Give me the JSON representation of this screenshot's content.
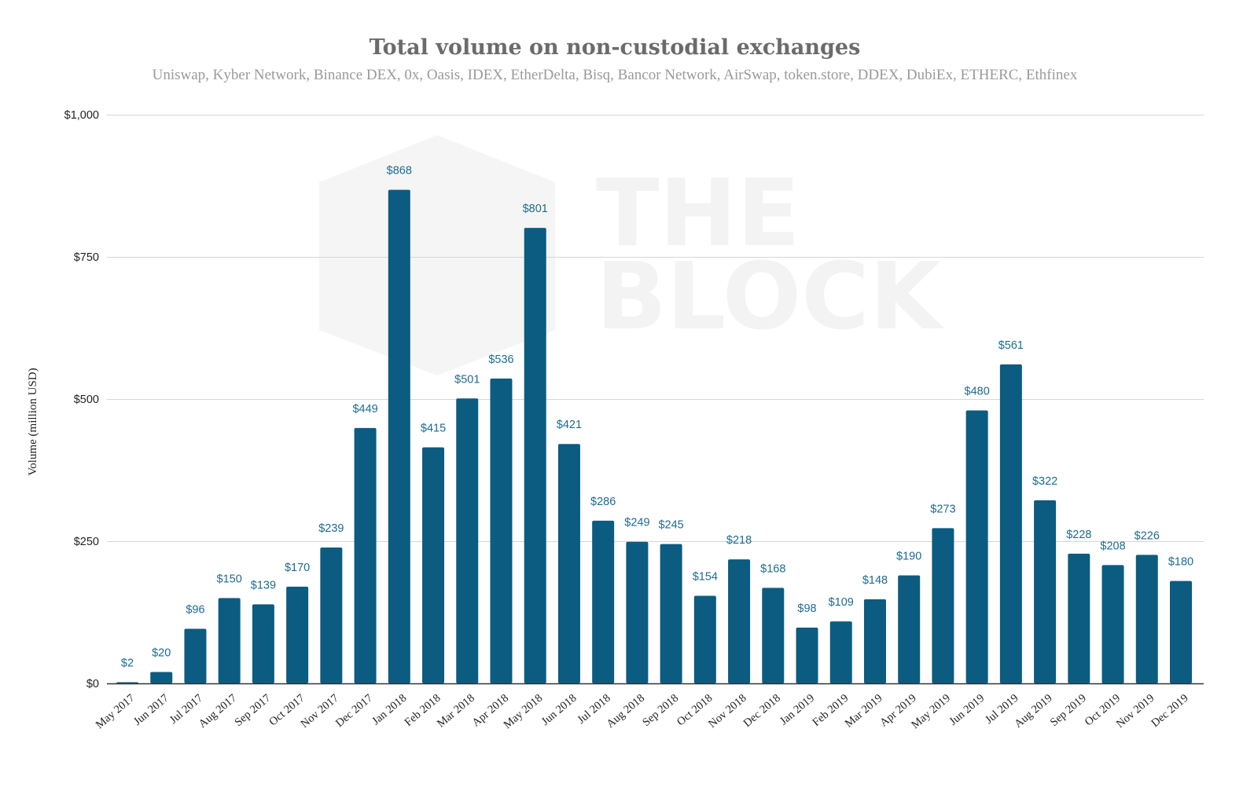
{
  "chart_data": {
    "type": "bar",
    "title": "Total volume on non-custodial exchanges",
    "subtitle": "Uniswap, Kyber Network, Binance DEX, 0x, Oasis, IDEX, EtherDelta, Bisq, Bancor Network, AirSwap, token.store, DDEX, DubiEx, ETHERC, Ethfinex",
    "xlabel": "",
    "ylabel": "Volume (million USD)",
    "ylim": [
      0,
      1000
    ],
    "yticks": [
      0,
      250,
      500,
      750,
      1000
    ],
    "ytick_labels": [
      "$0",
      "$250",
      "$500",
      "$750",
      "$1,000"
    ],
    "grid": true,
    "legend": "none",
    "categories": [
      "May 2017",
      "Jun 2017",
      "Jul 2017",
      "Aug 2017",
      "Sep 2017",
      "Oct 2017",
      "Nov 2017",
      "Dec 2017",
      "Jan 2018",
      "Feb 2018",
      "Mar 2018",
      "Apr 2018",
      "May 2018",
      "Jun 2018",
      "Jul 2018",
      "Aug 2018",
      "Sep 2018",
      "Oct 2018",
      "Nov 2018",
      "Dec 2018",
      "Jan 2019",
      "Feb 2019",
      "Mar 2019",
      "Apr 2019",
      "May 2019",
      "Jun 2019",
      "Jul 2019",
      "Aug 2019",
      "Sep 2019",
      "Oct 2019",
      "Nov 2019",
      "Dec 2019"
    ],
    "values": [
      2,
      20,
      96,
      150,
      139,
      170,
      239,
      449,
      868,
      415,
      501,
      536,
      801,
      421,
      286,
      249,
      245,
      154,
      218,
      168,
      98,
      109,
      148,
      190,
      273,
      480,
      561,
      322,
      228,
      208,
      226,
      180
    ],
    "data_labels": [
      "$2",
      "$20",
      "$96",
      "$150",
      "$139",
      "$170",
      "$239",
      "$449",
      "$868",
      "$415",
      "$501",
      "$536",
      "$801",
      "$421",
      "$286",
      "$249",
      "$245",
      "$154",
      "$218",
      "$168",
      "$98",
      "$109",
      "$148",
      "$190",
      "$273",
      "$480",
      "$561",
      "$322",
      "$228",
      "$208",
      "$226",
      "$180"
    ],
    "colors": {
      "bar": "#0b5c80",
      "label": "#1d6b8f",
      "grid": "#d6d6d6",
      "axis": "#333333"
    }
  },
  "watermark": {
    "line1": "THE",
    "line2": "BLOCK"
  }
}
